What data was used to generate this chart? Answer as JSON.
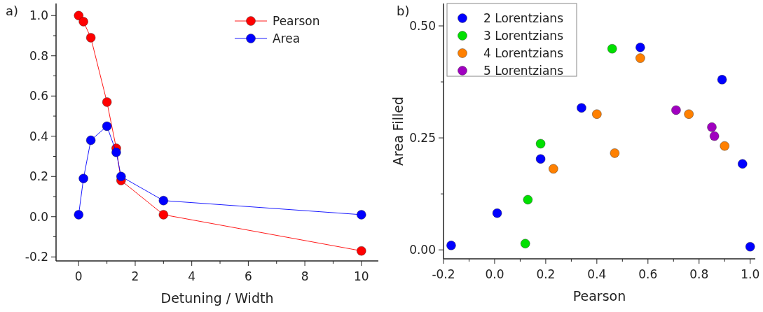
{
  "chart_data": [
    {
      "type": "line",
      "title": "a)",
      "xlabel": "Detuning / Width",
      "x": [
        0,
        0.17,
        0.43,
        1,
        1.33,
        1.5,
        3,
        10
      ],
      "series": [
        {
          "name": "Pearson",
          "color": "#ff0000",
          "values": [
            1.0,
            0.97,
            0.89,
            0.57,
            0.34,
            0.18,
            0.01,
            -0.17
          ]
        },
        {
          "name": "Area",
          "color": "#0000ff",
          "values": [
            0.01,
            0.19,
            0.38,
            0.45,
            0.32,
            0.2,
            0.08,
            0.01
          ]
        }
      ],
      "xlim": [
        -0.8,
        10.6
      ],
      "ylim": [
        -0.22,
        1.06
      ],
      "xticks": [
        0,
        2,
        4,
        6,
        8,
        10
      ],
      "yticks": [
        -0.2,
        {
          "value": 0,
          "label": "0.0"
        },
        0.2,
        0.4,
        0.6,
        0.8,
        {
          "value": 1,
          "label": "1.0"
        }
      ],
      "legend": "top right",
      "marker": "circle",
      "grid": false
    },
    {
      "type": "scatter",
      "title": "b)",
      "xlabel": "Pearson",
      "ylabel": "Area Filled",
      "series": [
        {
          "name": "2 Lorentzians",
          "color": "#0000ff",
          "x": [
            -0.17,
            0.01,
            0.18,
            0.34,
            0.57,
            0.89,
            0.97,
            1.0
          ],
          "values": [
            0.01,
            0.082,
            0.203,
            0.317,
            0.452,
            0.38,
            0.192,
            0.007
          ]
        },
        {
          "name": "3 Lorentzians",
          "color": "#00e000",
          "x": [
            0.12,
            0.13,
            0.18,
            0.46
          ],
          "values": [
            0.014,
            0.112,
            0.237,
            0.449
          ]
        },
        {
          "name": "4 Lorentzians",
          "color": "#ff8000",
          "x": [
            0.23,
            0.4,
            0.47,
            0.57,
            0.76,
            0.9
          ],
          "values": [
            0.181,
            0.303,
            0.216,
            0.428,
            0.303,
            0.232
          ]
        },
        {
          "name": "5 Lorentzians",
          "color": "#a000c0",
          "x": [
            0.71,
            0.85,
            0.86
          ],
          "values": [
            0.312,
            0.274,
            0.254
          ]
        }
      ],
      "xlim": [
        -0.2,
        1.02
      ],
      "ylim": [
        -0.02,
        0.55
      ],
      "xticks": [
        -0.2,
        {
          "value": 0,
          "label": "0.0"
        },
        0.2,
        0.4,
        0.6,
        0.8,
        {
          "value": 1,
          "label": "1.0"
        }
      ],
      "yticks": [
        {
          "value": 0,
          "label": "0.00"
        },
        {
          "value": 0.25,
          "label": "0.25"
        },
        {
          "value": 0.5,
          "label": "0.50"
        }
      ],
      "legend": "top left",
      "marker": "circle",
      "grid": false
    }
  ]
}
